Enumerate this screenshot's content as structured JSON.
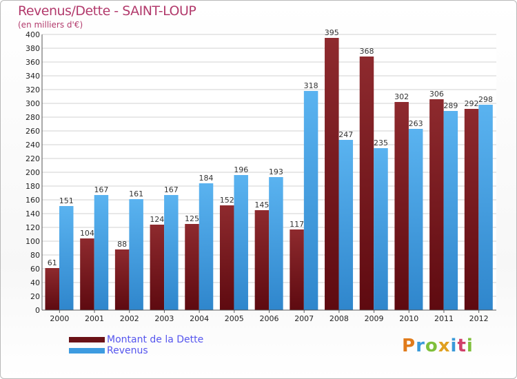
{
  "title": "Revenus/Dette - SAINT-LOUP",
  "subtitle": "(en milliers d'€)",
  "colors": {
    "dette": "#7a1a1f",
    "revenus": "#3d9be0",
    "title": "#b23a6c",
    "legend_text": "#5555ee"
  },
  "logo": {
    "letters": [
      "P",
      "r",
      "o",
      "x",
      "i",
      "t",
      "i"
    ],
    "colors": [
      "#e07b1b",
      "#3a9ad9",
      "#7fbf3b",
      "#e0a020",
      "#3a9ad9",
      "#d0406a",
      "#7fbf3b"
    ]
  },
  "chart_data": {
    "type": "bar",
    "title": "Revenus/Dette - SAINT-LOUP",
    "subtitle": "(en milliers d'€)",
    "categories": [
      "2000",
      "2001",
      "2002",
      "2003",
      "2004",
      "2005",
      "2006",
      "2007",
      "2008",
      "2009",
      "2010",
      "2011",
      "2012"
    ],
    "series": [
      {
        "name": "Montant de la Dette",
        "values": [
          61,
          104,
          88,
          124,
          125,
          152,
          145,
          117,
          395,
          368,
          302,
          306,
          292
        ]
      },
      {
        "name": "Revenus",
        "values": [
          151,
          167,
          161,
          167,
          184,
          196,
          193,
          318,
          247,
          235,
          263,
          289,
          298
        ]
      }
    ],
    "ylim": [
      0,
      400
    ],
    "ytick_step": 20,
    "grid": true,
    "legend_position": "bottom-left"
  }
}
